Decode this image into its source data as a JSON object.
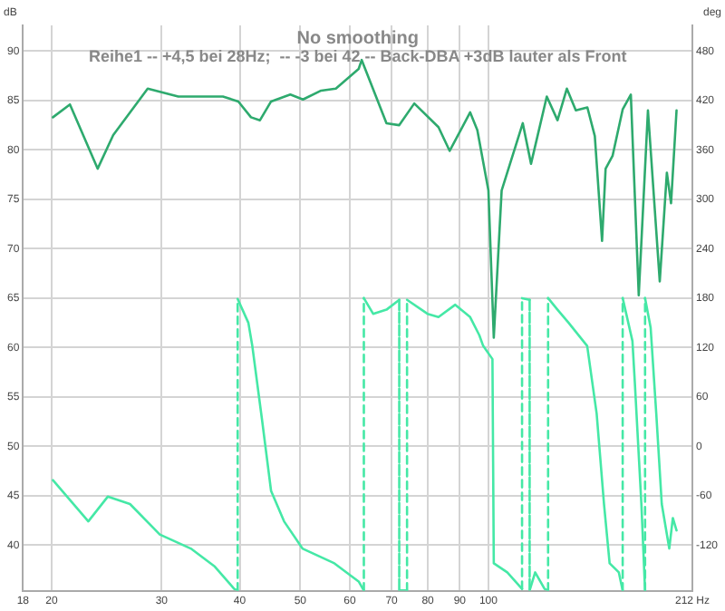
{
  "chart_data": {
    "type": "line",
    "title": "No smoothing",
    "subtitle": "Reihe1 -- +4,5 bei 28Hz;  -- -3 bei 42 -- Back-DBA +3dB lauter als Front",
    "ylabel": "dB",
    "y2label": "deg",
    "log": "x",
    "grid": true,
    "legend": false,
    "marker": "none",
    "line_style": "solid",
    "xlim": [
      18,
      212
    ],
    "xticks": [
      18,
      20,
      30,
      40,
      50,
      60,
      70,
      80,
      90,
      100,
      {
        "value": 212,
        "label": "212 Hz"
      }
    ],
    "ylim": [
      35.4,
      92.6
    ],
    "yticks": [
      40,
      45,
      50,
      55,
      60,
      65,
      70,
      75,
      80,
      85,
      90
    ],
    "y2lim": [
      -175.2,
      511.2
    ],
    "y2ticks": [
      -120,
      -60,
      0,
      60,
      120,
      180,
      240,
      300,
      360,
      420,
      480
    ],
    "series": [
      {
        "color": "#2eaa6e",
        "x": [
          20.1,
          21.4,
          23.7,
          25.1,
          28.5,
          31.9,
          37.6,
          39.8,
          41.7,
          43.1,
          44.9,
          48.2,
          50.5,
          54.0,
          57.0,
          62.0,
          62.7,
          68.7,
          72.0,
          76.1,
          83.2,
          86.7,
          93.5,
          96.0,
          100,
          102,
          105,
          113.5,
          117,
          124,
          129,
          133.5,
          138,
          144,
          148,
          152,
          154,
          158,
          164,
          169,
          174,
          180,
          188,
          193,
          196,
          200
        ],
        "values": [
          83.3,
          84.6,
          78.1,
          81.5,
          86.2,
          85.4,
          85.4,
          84.9,
          83.3,
          83.0,
          84.9,
          85.6,
          85.1,
          86.0,
          86.2,
          88.2,
          89.1,
          82.7,
          82.5,
          84.7,
          82.3,
          79.9,
          83.8,
          82.0,
          75.9,
          61.0,
          75.9,
          82.7,
          78.6,
          85.4,
          83.0,
          86.2,
          84.0,
          84.3,
          81.4,
          70.8,
          78.1,
          79.4,
          84.1,
          85.6,
          65.3,
          84.0,
          66.7,
          77.7,
          74.6,
          84.0
        ]
      },
      {
        "color": "#45e8a6",
        "axis": "y2",
        "x": [
          20.1,
          22.9,
          24.6,
          26.7,
          29.8,
          33.4,
          36.5,
          39.2,
          39.7,
          39.7,
          41.3,
          41.9,
          43.4,
          44.9,
          47.1,
          50.4,
          56.7,
          62.0,
          63.2,
          63.2,
          65.4,
          68.7,
          72.0,
          72.0,
          74.1,
          74.1,
          79.9,
          83.2,
          88.5,
          93.5,
          96.7,
          98.1,
          101.5,
          102.0,
          107.2,
          113.2,
          113.2,
          116.4,
          116.4,
          118.8,
          123.0,
          124.6,
          124.6,
          129.0,
          134.4,
          143.9,
          149.0,
          153.1,
          156.3,
          161.7,
          164.0,
          164.0,
          170.0,
          171.5,
          175.7,
          178.1,
          178.1,
          181.8,
          185.6,
          189.4,
          194.7,
          197.3,
          200
        ],
        "values": [
          -41,
          -91,
          -61,
          -70,
          -107,
          -124,
          -146,
          -173,
          -175,
          179,
          150,
          122,
          34,
          -54,
          -91,
          -124,
          -142,
          -164,
          -175,
          180,
          161,
          166,
          178,
          -175,
          -175,
          178,
          161,
          157,
          172,
          157,
          135,
          122,
          106,
          -142,
          -153,
          -173,
          180,
          178,
          -175,
          -153,
          -173,
          -175,
          180,
          166,
          150,
          122,
          40,
          -70,
          -142,
          -153,
          -175,
          180,
          128,
          78,
          -70,
          -175,
          180,
          144,
          40,
          -70,
          -124,
          -87,
          -102
        ]
      }
    ]
  }
}
